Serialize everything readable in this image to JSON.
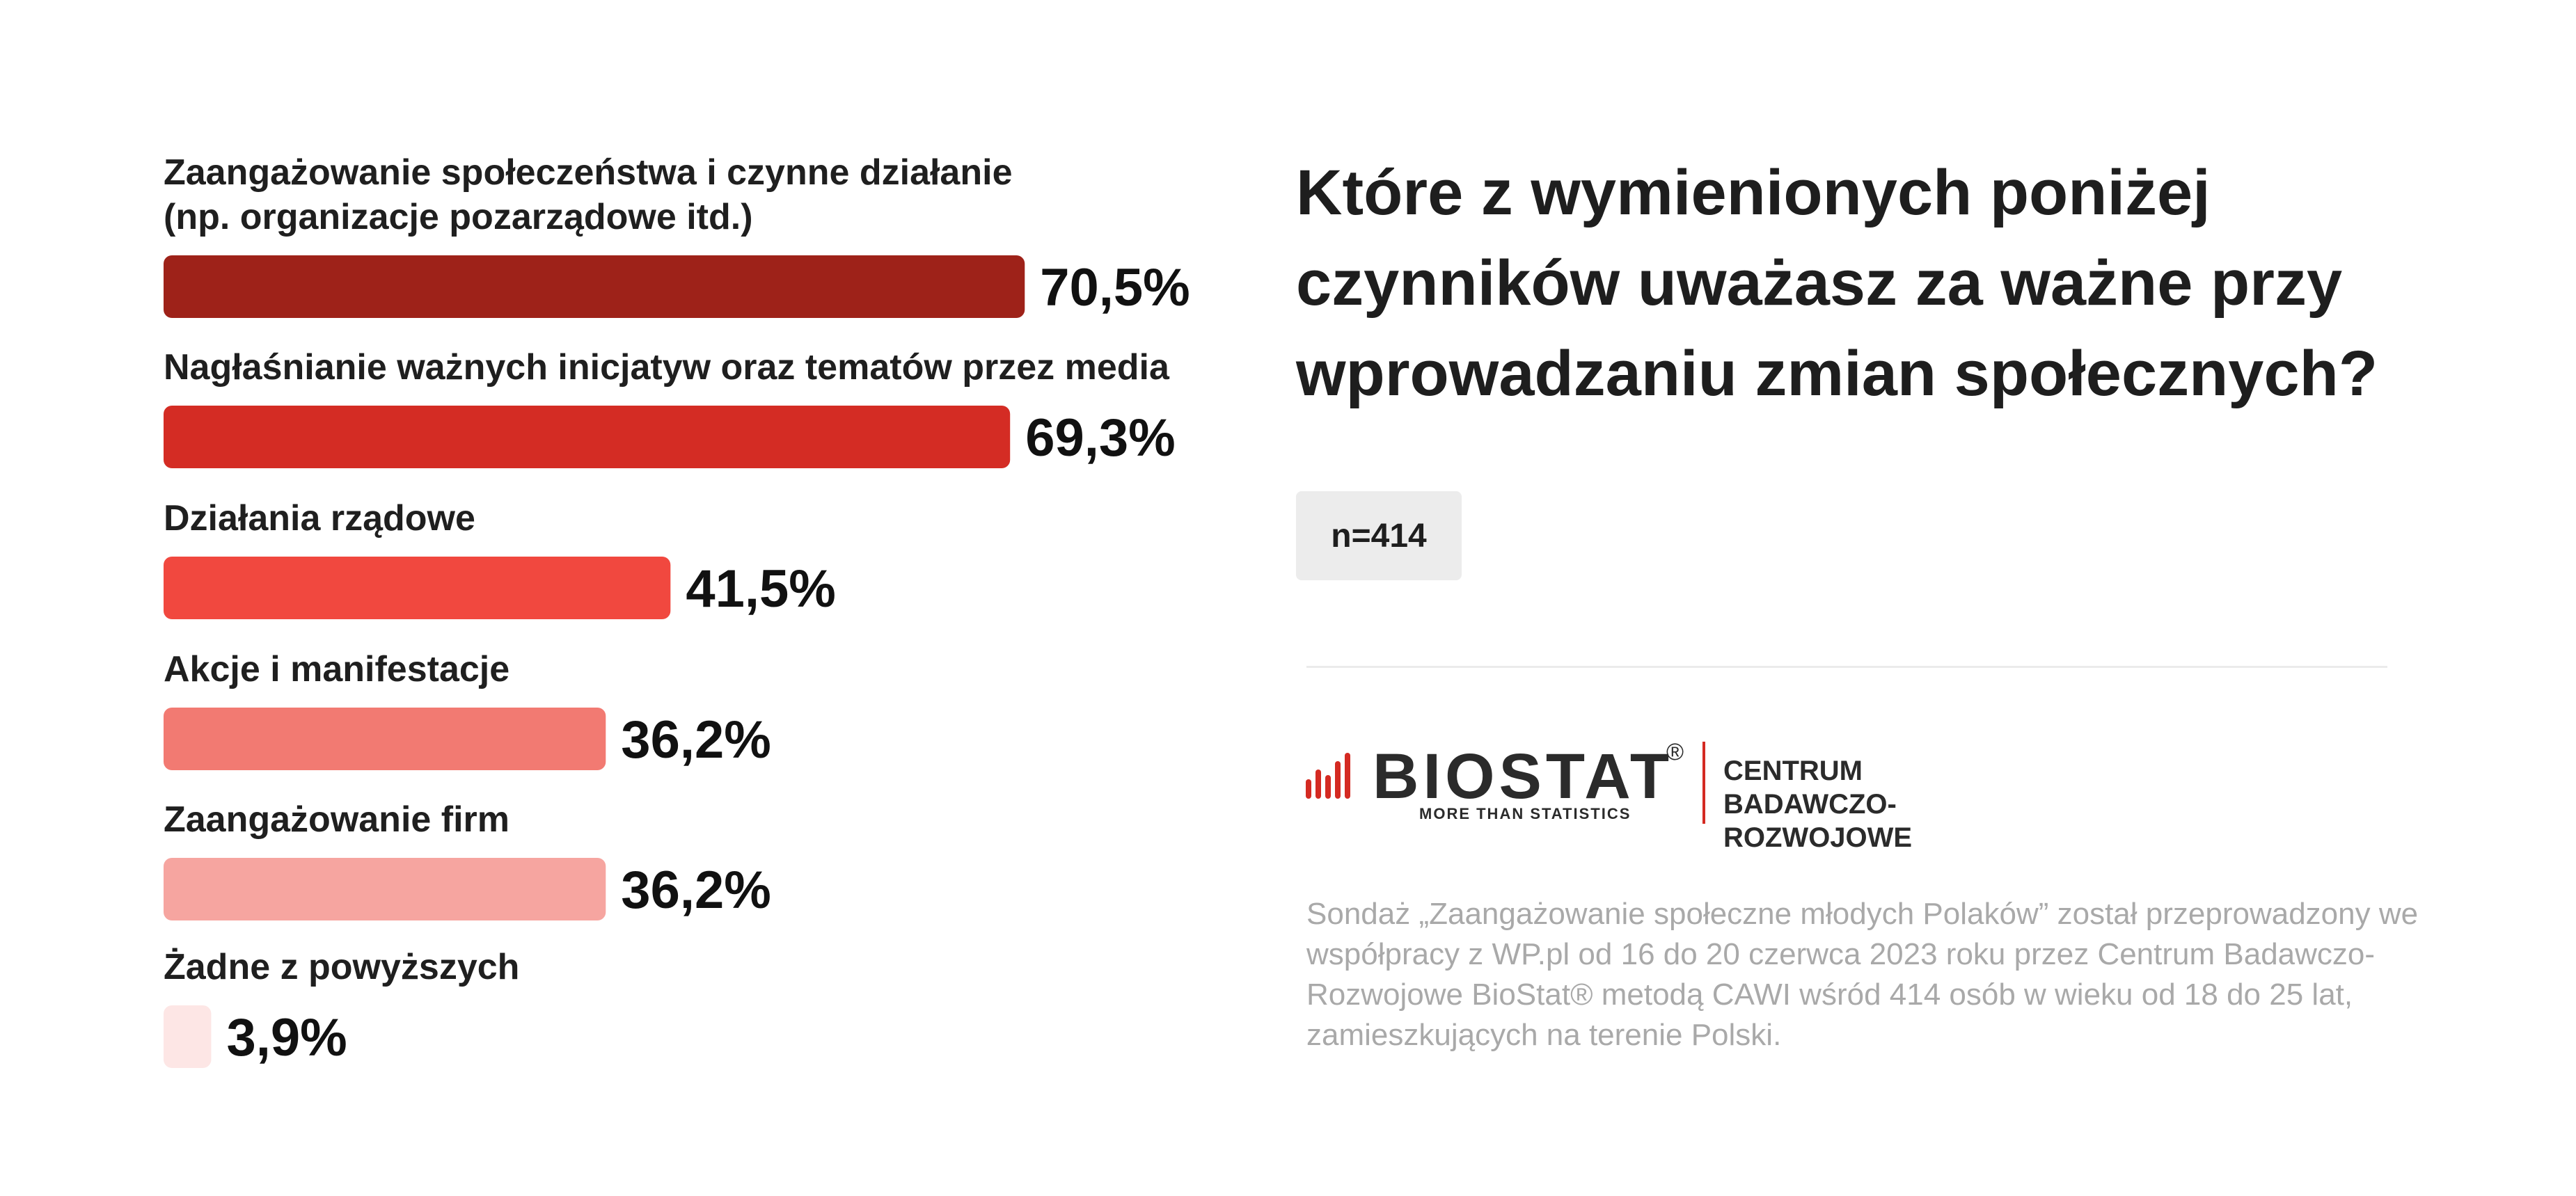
{
  "question": "Które z wymienionych poniżej czynników uważasz za ważne przy wprowadzaniu zmian społecznych?",
  "sample_label": "n=414",
  "logo": {
    "name": "BIOSTAT",
    "registered": "®",
    "tagline": "MORE THAN STATISTICS",
    "subtitle_line1": "CENTRUM",
    "subtitle_line2": "BADAWCZO-ROZWOJOWE"
  },
  "footnote": "Sondaż „Zaangażowanie społeczne młodych Polaków” został przeprowadzony we współpracy z WP.pl od 16 do 20 czerwca 2023 roku przez Centrum Badawczo-Rozwojowe BioStat® metodą CAWI wśród 414 osób w wieku od 18 do 25 lat, zamieszkujących na terenie Polski.",
  "colors": {
    "accent": "#d42a22",
    "bars": [
      "#9e2219",
      "#d42c24",
      "#f1483f",
      "#f27a72",
      "#f6a5a0",
      "#fde6e5"
    ]
  },
  "chart_data": {
    "type": "bar",
    "orientation": "horizontal",
    "categories": [
      [
        "Zaangażowanie społeczeństwa i czynne działanie",
        "(np. organizacje pozarządowe itd.)"
      ],
      [
        "Nagłaśnianie ważnych inicjatyw oraz tematów przez media"
      ],
      [
        "Działania rządowe"
      ],
      [
        "Akcje i manifestacje"
      ],
      [
        "Zaangażowanie firm"
      ],
      [
        "Żadne z powyższych"
      ]
    ],
    "values": [
      70.5,
      69.3,
      41.5,
      36.2,
      36.2,
      3.9
    ],
    "value_labels": [
      "70,5%",
      "69,3%",
      "41,5%",
      "36,2%",
      "36,2%",
      "3,9%"
    ],
    "unit": "%",
    "grid": false,
    "legend": "none"
  }
}
